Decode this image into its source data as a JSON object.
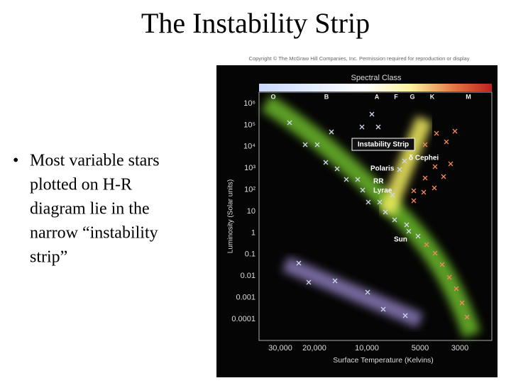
{
  "slide": {
    "title": "The Instability Strip",
    "bullet": {
      "marker": "•",
      "lines": [
        "Most variable stars",
        "plotted on H-R",
        "diagram lie in the",
        "narrow “instability",
        "strip”"
      ]
    }
  },
  "figure": {
    "copyright": "Copyright © The McGraw Hill Companies, Inc. Permission required for reproduction or display",
    "spectral_label": "Spectral Class",
    "spectral_classes": [
      "O",
      "B",
      "A",
      "F",
      "G",
      "K",
      "M"
    ],
    "y_label": "Luminosity (Solar units)",
    "y_ticks": [
      "10⁶",
      "10⁵",
      "10⁴",
      "10³",
      "10²",
      "10",
      "1",
      "0.1",
      "0.01",
      "0.001",
      "0.0001"
    ],
    "x_label": "Surface Temperature (Kelvins)",
    "x_ticks": [
      "30,000",
      "20,000",
      "10,000",
      "5000",
      "3000"
    ],
    "annotations": {
      "strip": "Instability Strip",
      "cephei": "δ Cephei",
      "polaris": "Polaris",
      "rr1": "RR",
      "rr2": "Lyrae",
      "sun": "Sun"
    }
  }
}
